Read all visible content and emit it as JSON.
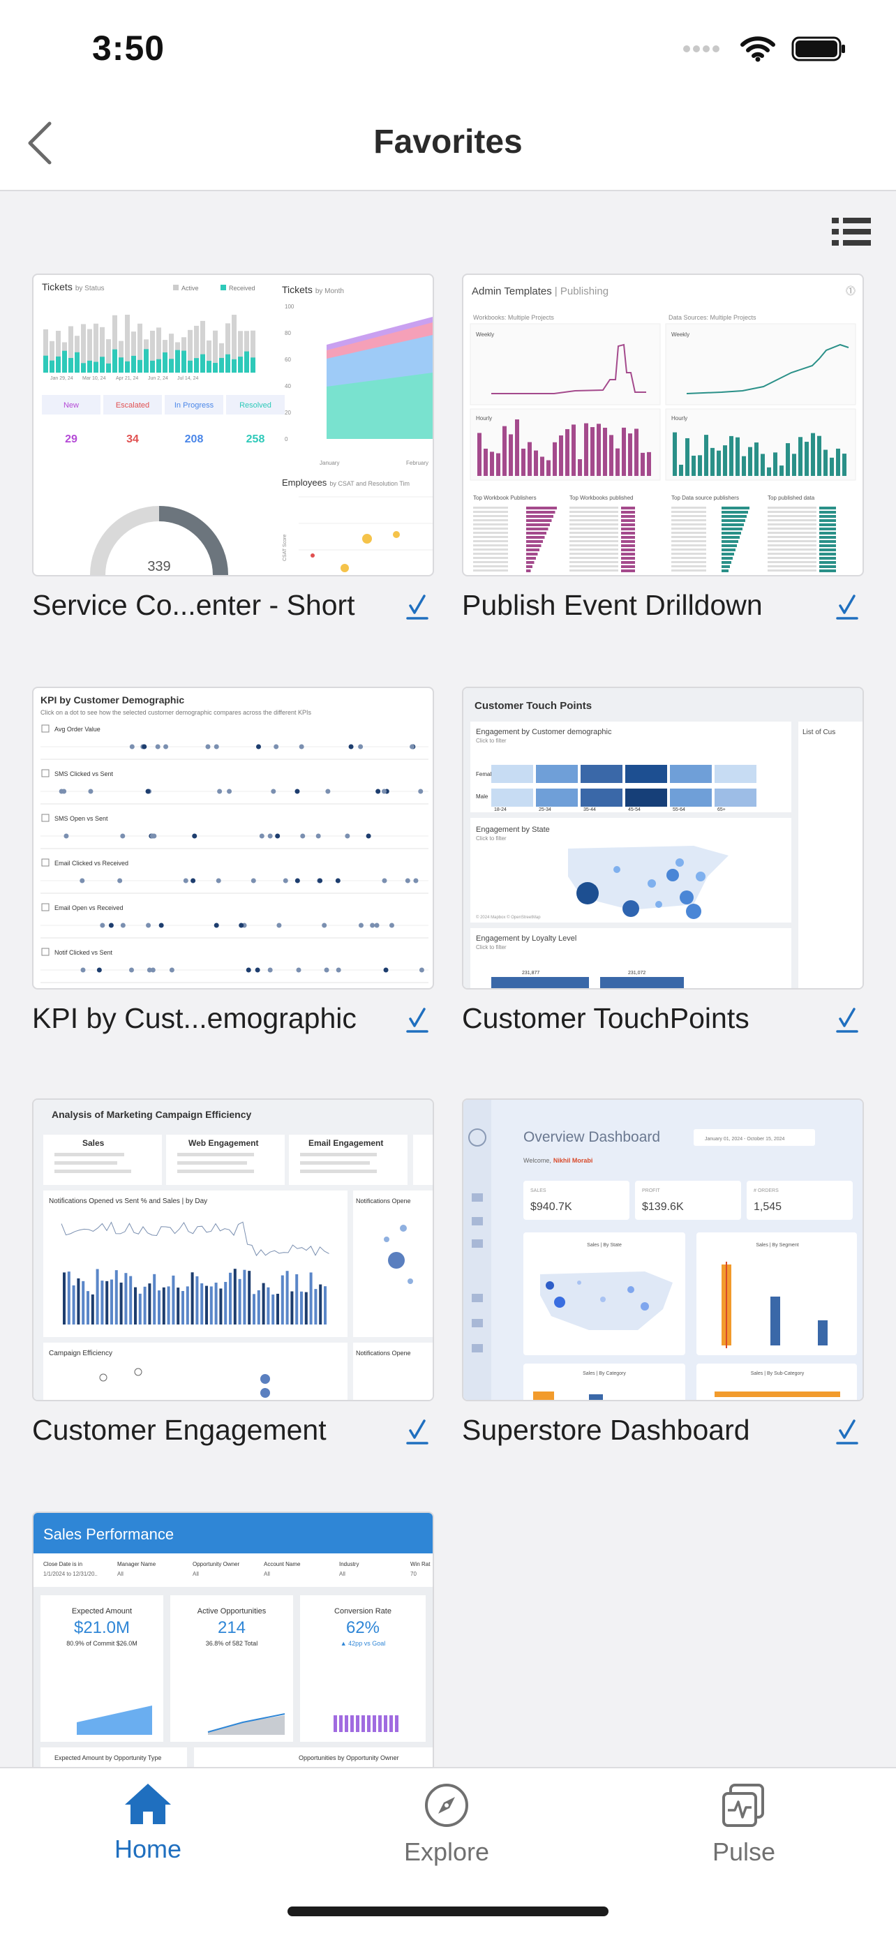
{
  "status": {
    "time": "3:50"
  },
  "header": {
    "title": "Favorites"
  },
  "cards": [
    {
      "title": "Service Co...enter - Short"
    },
    {
      "title": "Publish Event Drilldown"
    },
    {
      "title": "KPI by Cust...emographic"
    },
    {
      "title": "Customer TouchPoints"
    },
    {
      "title": "Customer Engagement"
    },
    {
      "title": "Superstore Dashboard"
    },
    {
      "title": "Sales Performance"
    }
  ],
  "thumbnails": {
    "service": {
      "tickets_status": "Tickets",
      "tickets_status_sub": "by Status",
      "tickets_month": "Tickets",
      "tickets_month_sub": "by Month",
      "legend_active": "Active",
      "legend_received": "Received",
      "status_headers": [
        "New",
        "Escalated",
        "In Progress",
        "Resolved"
      ],
      "status_values": [
        "29",
        "34",
        "208",
        "258"
      ],
      "gauge_value": "339",
      "employees": "Employees",
      "employees_sub": "by CSAT and Resolution Tim",
      "month_labels": [
        "January",
        "February"
      ],
      "y_ticks": [
        "100",
        "80",
        "60",
        "40",
        "20",
        "0"
      ],
      "date_ticks": [
        "Jan 29, 24",
        "Mar 10, 24",
        "Apr 21, 24",
        "Jun 2, 24",
        "Jul 14, 24"
      ],
      "csat_label": "CSAT Score"
    },
    "publish": {
      "title": "Admin Templates",
      "title_sub": "| Publishing",
      "section_left": "Workbooks: Multiple Projects",
      "section_right": "Data Sources: Multiple Projects",
      "weekly": "Weekly",
      "hourly": "Hourly",
      "top_left_1": "Top Workbook Publishers",
      "top_left_2": "Top Workbooks published",
      "top_right_1": "Top Data source publishers",
      "top_right_2": "Top published data"
    },
    "kpi": {
      "title": "KPI by Customer Demographic",
      "subtitle": "Click on a dot to see how the selected customer demographic compares across the different KPIs",
      "rows": [
        "Avg Order Value",
        "SMS Clicked vs Sent",
        "SMS Open vs Sent",
        "Email Clicked vs Received",
        "Email Open vs Received",
        "Notif Clicked vs Sent"
      ]
    },
    "touch": {
      "title": "Customer Touch Points",
      "engagement_demo": "Engagement by Customer demographic",
      "engagement_state": "Engagement by State",
      "engagement_loyalty": "Engagement by Loyalty Level",
      "click_filter": "Click to filter",
      "female": "Female",
      "male": "Male",
      "ages": [
        "18-24",
        "25-34",
        "35-44",
        "45-54",
        "55-64",
        "65+"
      ],
      "list_title": "List of Cus",
      "loyalty_values": [
        "231,877",
        "231,072"
      ],
      "map_credit": "© 2024 Mapbox © OpenStreetMap"
    },
    "engagement": {
      "title": "Analysis of Marketing Campaign Efficiency",
      "kpi_sales": "Sales",
      "kpi_web": "Web Engagement",
      "kpi_email": "Email Engagement",
      "chart_title": "Notifications Opened vs Sent % and Sales | by Day",
      "notif_title": "Notifications Opene",
      "campaign": "Campaign Efficiency",
      "notif_title_2": "Notifications Opene"
    },
    "superstore": {
      "title": "Overview Dashboard",
      "date_range": "January 01, 2024 - October 15, 2024",
      "welcome": "Welcome,",
      "user": "Nikhil Morabi",
      "kpi_labels": [
        "SALES",
        "PROFIT",
        "# ORDERS"
      ],
      "kpi_values": [
        "$940.7K",
        "$139.6K",
        "1,545"
      ],
      "panel_state": "Sales | By State",
      "panel_segment": "Sales | By Segment",
      "panel_category": "Sales | By Category",
      "panel_subcategory": "Sales | By Sub-Category"
    },
    "sales": {
      "title": "Sales Performance",
      "filters": [
        "Close Date is in",
        "Manager Name",
        "Opportunity Owner",
        "Account Name",
        "Industry",
        "Win Rat"
      ],
      "filter_values": [
        "1/1/2024 to 12/31/20..",
        "All",
        "All",
        "All",
        "All",
        "70"
      ],
      "k1_title": "Expected Amount",
      "k1_value": "$21.0M",
      "k1_sub": "80.9% of Commit $26.0M",
      "k2_title": "Active Opportunities",
      "k2_value": "214",
      "k2_sub": "36.8% of 582 Total",
      "k3_title": "Conversion Rate",
      "k3_value": "62%",
      "k3_sub": "▲ 42pp vs Goal",
      "bottom_left": "Expected Amount by Opportunity Type",
      "bottom_right": "Opportunities by Opportunity Owner"
    }
  },
  "tabbar": {
    "home": "Home",
    "explore": "Explore",
    "pulse": "Pulse"
  },
  "colors": {
    "accent": "#1f6fbf",
    "tab_inactive": "#707070",
    "check": "#1f6fbf"
  }
}
